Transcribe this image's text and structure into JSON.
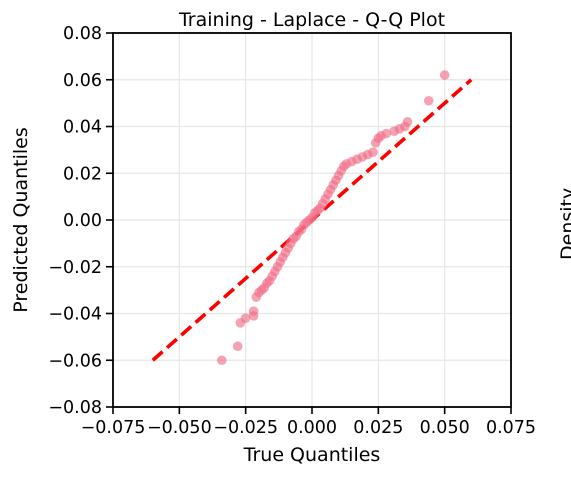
{
  "chart_data": {
    "type": "scatter",
    "title": "Training - Laplace - Q-Q Plot",
    "xlabel": "True Quantiles",
    "ylabel": "Predicted Quantiles",
    "xlim": [
      -0.075,
      0.075
    ],
    "ylim": [
      -0.08,
      0.08
    ],
    "xticks": [
      "−0.075",
      "−0.050",
      "−0.025",
      "0.000",
      "0.025",
      "0.050",
      "0.075"
    ],
    "xtick_values": [
      -0.075,
      -0.05,
      -0.025,
      0.0,
      0.025,
      0.05,
      0.075
    ],
    "yticks": [
      "−0.08",
      "−0.06",
      "−0.04",
      "−0.02",
      "0.00",
      "0.02",
      "0.04",
      "0.06",
      "0.08"
    ],
    "ytick_values": [
      -0.08,
      -0.06,
      -0.04,
      -0.02,
      0.0,
      0.02,
      0.04,
      0.06,
      0.08
    ],
    "grid": true,
    "reference_line": {
      "x": [
        -0.06,
        0.06
      ],
      "y": [
        -0.06,
        0.06
      ],
      "color": "#ff0000",
      "style": "dashed"
    },
    "marker_color": "#f07088",
    "points": [
      [
        -0.034,
        -0.06
      ],
      [
        -0.028,
        -0.054
      ],
      [
        -0.027,
        -0.044
      ],
      [
        -0.025,
        -0.042
      ],
      [
        -0.022,
        -0.041
      ],
      [
        -0.022,
        -0.039
      ],
      [
        -0.021,
        -0.033
      ],
      [
        -0.02,
        -0.031
      ],
      [
        -0.019,
        -0.03
      ],
      [
        -0.018,
        -0.029
      ],
      [
        -0.017,
        -0.027
      ],
      [
        -0.016,
        -0.026
      ],
      [
        -0.015,
        -0.024
      ],
      [
        -0.014,
        -0.022
      ],
      [
        -0.013,
        -0.02
      ],
      [
        -0.012,
        -0.018
      ],
      [
        -0.011,
        -0.016
      ],
      [
        -0.01,
        -0.014
      ],
      [
        -0.009,
        -0.012
      ],
      [
        -0.008,
        -0.01
      ],
      [
        -0.007,
        -0.008
      ],
      [
        -0.006,
        -0.007
      ],
      [
        -0.005,
        -0.005
      ],
      [
        -0.004,
        -0.004
      ],
      [
        -0.003,
        -0.002
      ],
      [
        -0.002,
        -0.001
      ],
      [
        -0.001,
        0.0
      ],
      [
        0.0,
        0.001
      ],
      [
        0.001,
        0.003
      ],
      [
        0.002,
        0.004
      ],
      [
        0.003,
        0.005
      ],
      [
        0.004,
        0.007
      ],
      [
        0.005,
        0.009
      ],
      [
        0.006,
        0.011
      ],
      [
        0.007,
        0.013
      ],
      [
        0.008,
        0.015
      ],
      [
        0.009,
        0.017
      ],
      [
        0.01,
        0.019
      ],
      [
        0.011,
        0.021
      ],
      [
        0.012,
        0.023
      ],
      [
        0.013,
        0.024
      ],
      [
        0.015,
        0.025
      ],
      [
        0.017,
        0.026
      ],
      [
        0.019,
        0.027
      ],
      [
        0.021,
        0.028
      ],
      [
        0.023,
        0.029
      ],
      [
        0.024,
        0.033
      ],
      [
        0.025,
        0.035
      ],
      [
        0.026,
        0.036
      ],
      [
        0.028,
        0.037
      ],
      [
        0.031,
        0.038
      ],
      [
        0.033,
        0.039
      ],
      [
        0.035,
        0.04
      ],
      [
        0.036,
        0.042
      ],
      [
        0.044,
        0.051
      ],
      [
        0.05,
        0.062
      ]
    ],
    "right_panel_partial_label": "Density"
  }
}
